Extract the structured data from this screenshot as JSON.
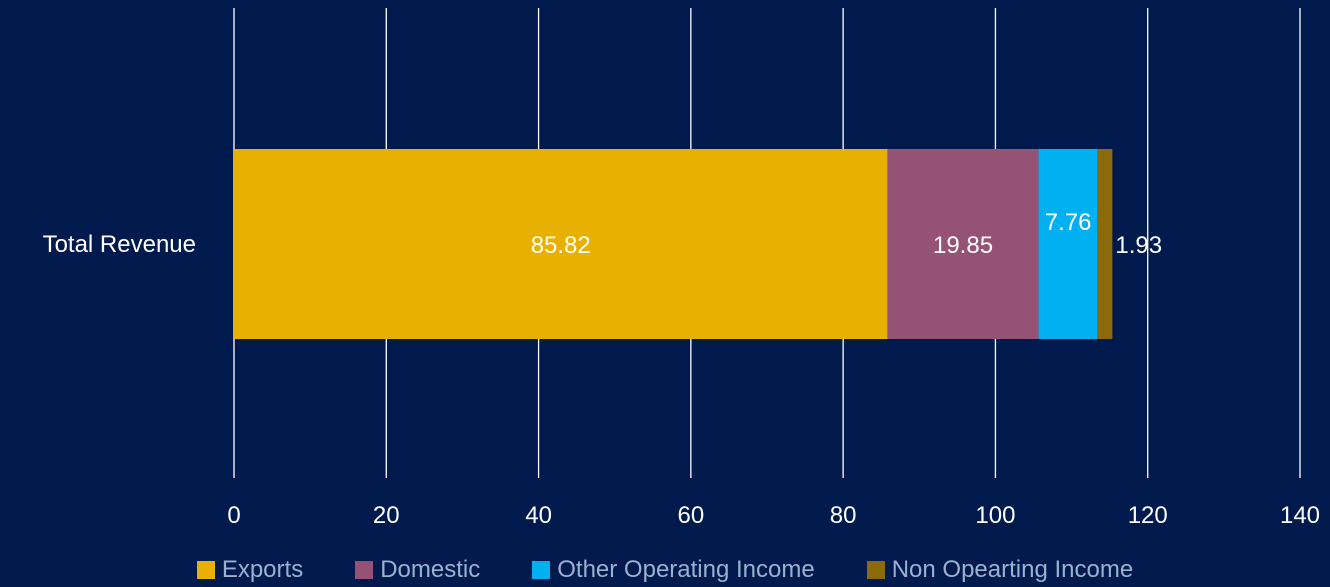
{
  "chart_data": {
    "type": "bar",
    "orientation": "horizontal",
    "stacked": true,
    "categories": [
      "Total Revenue"
    ],
    "series": [
      {
        "name": "Exports",
        "values": [
          85.82
        ],
        "color": "#e8b000",
        "label": "85.82"
      },
      {
        "name": "Domestic",
        "values": [
          19.85
        ],
        "color": "#955274",
        "label": "19.85"
      },
      {
        "name": "Other Operating Income",
        "values": [
          7.76
        ],
        "color": "#00b0f0",
        "label": "7.76"
      },
      {
        "name": "Non Opearting Income",
        "values": [
          1.93
        ],
        "color": "#8a6a0a",
        "label": "1.93"
      }
    ],
    "xlim": [
      0,
      140
    ],
    "xticks": [
      "0",
      "20",
      "40",
      "60",
      "80",
      "100",
      "120",
      "140"
    ],
    "grid": true,
    "legend_position": "bottom",
    "title": "",
    "xlabel": "",
    "ylabel": ""
  }
}
